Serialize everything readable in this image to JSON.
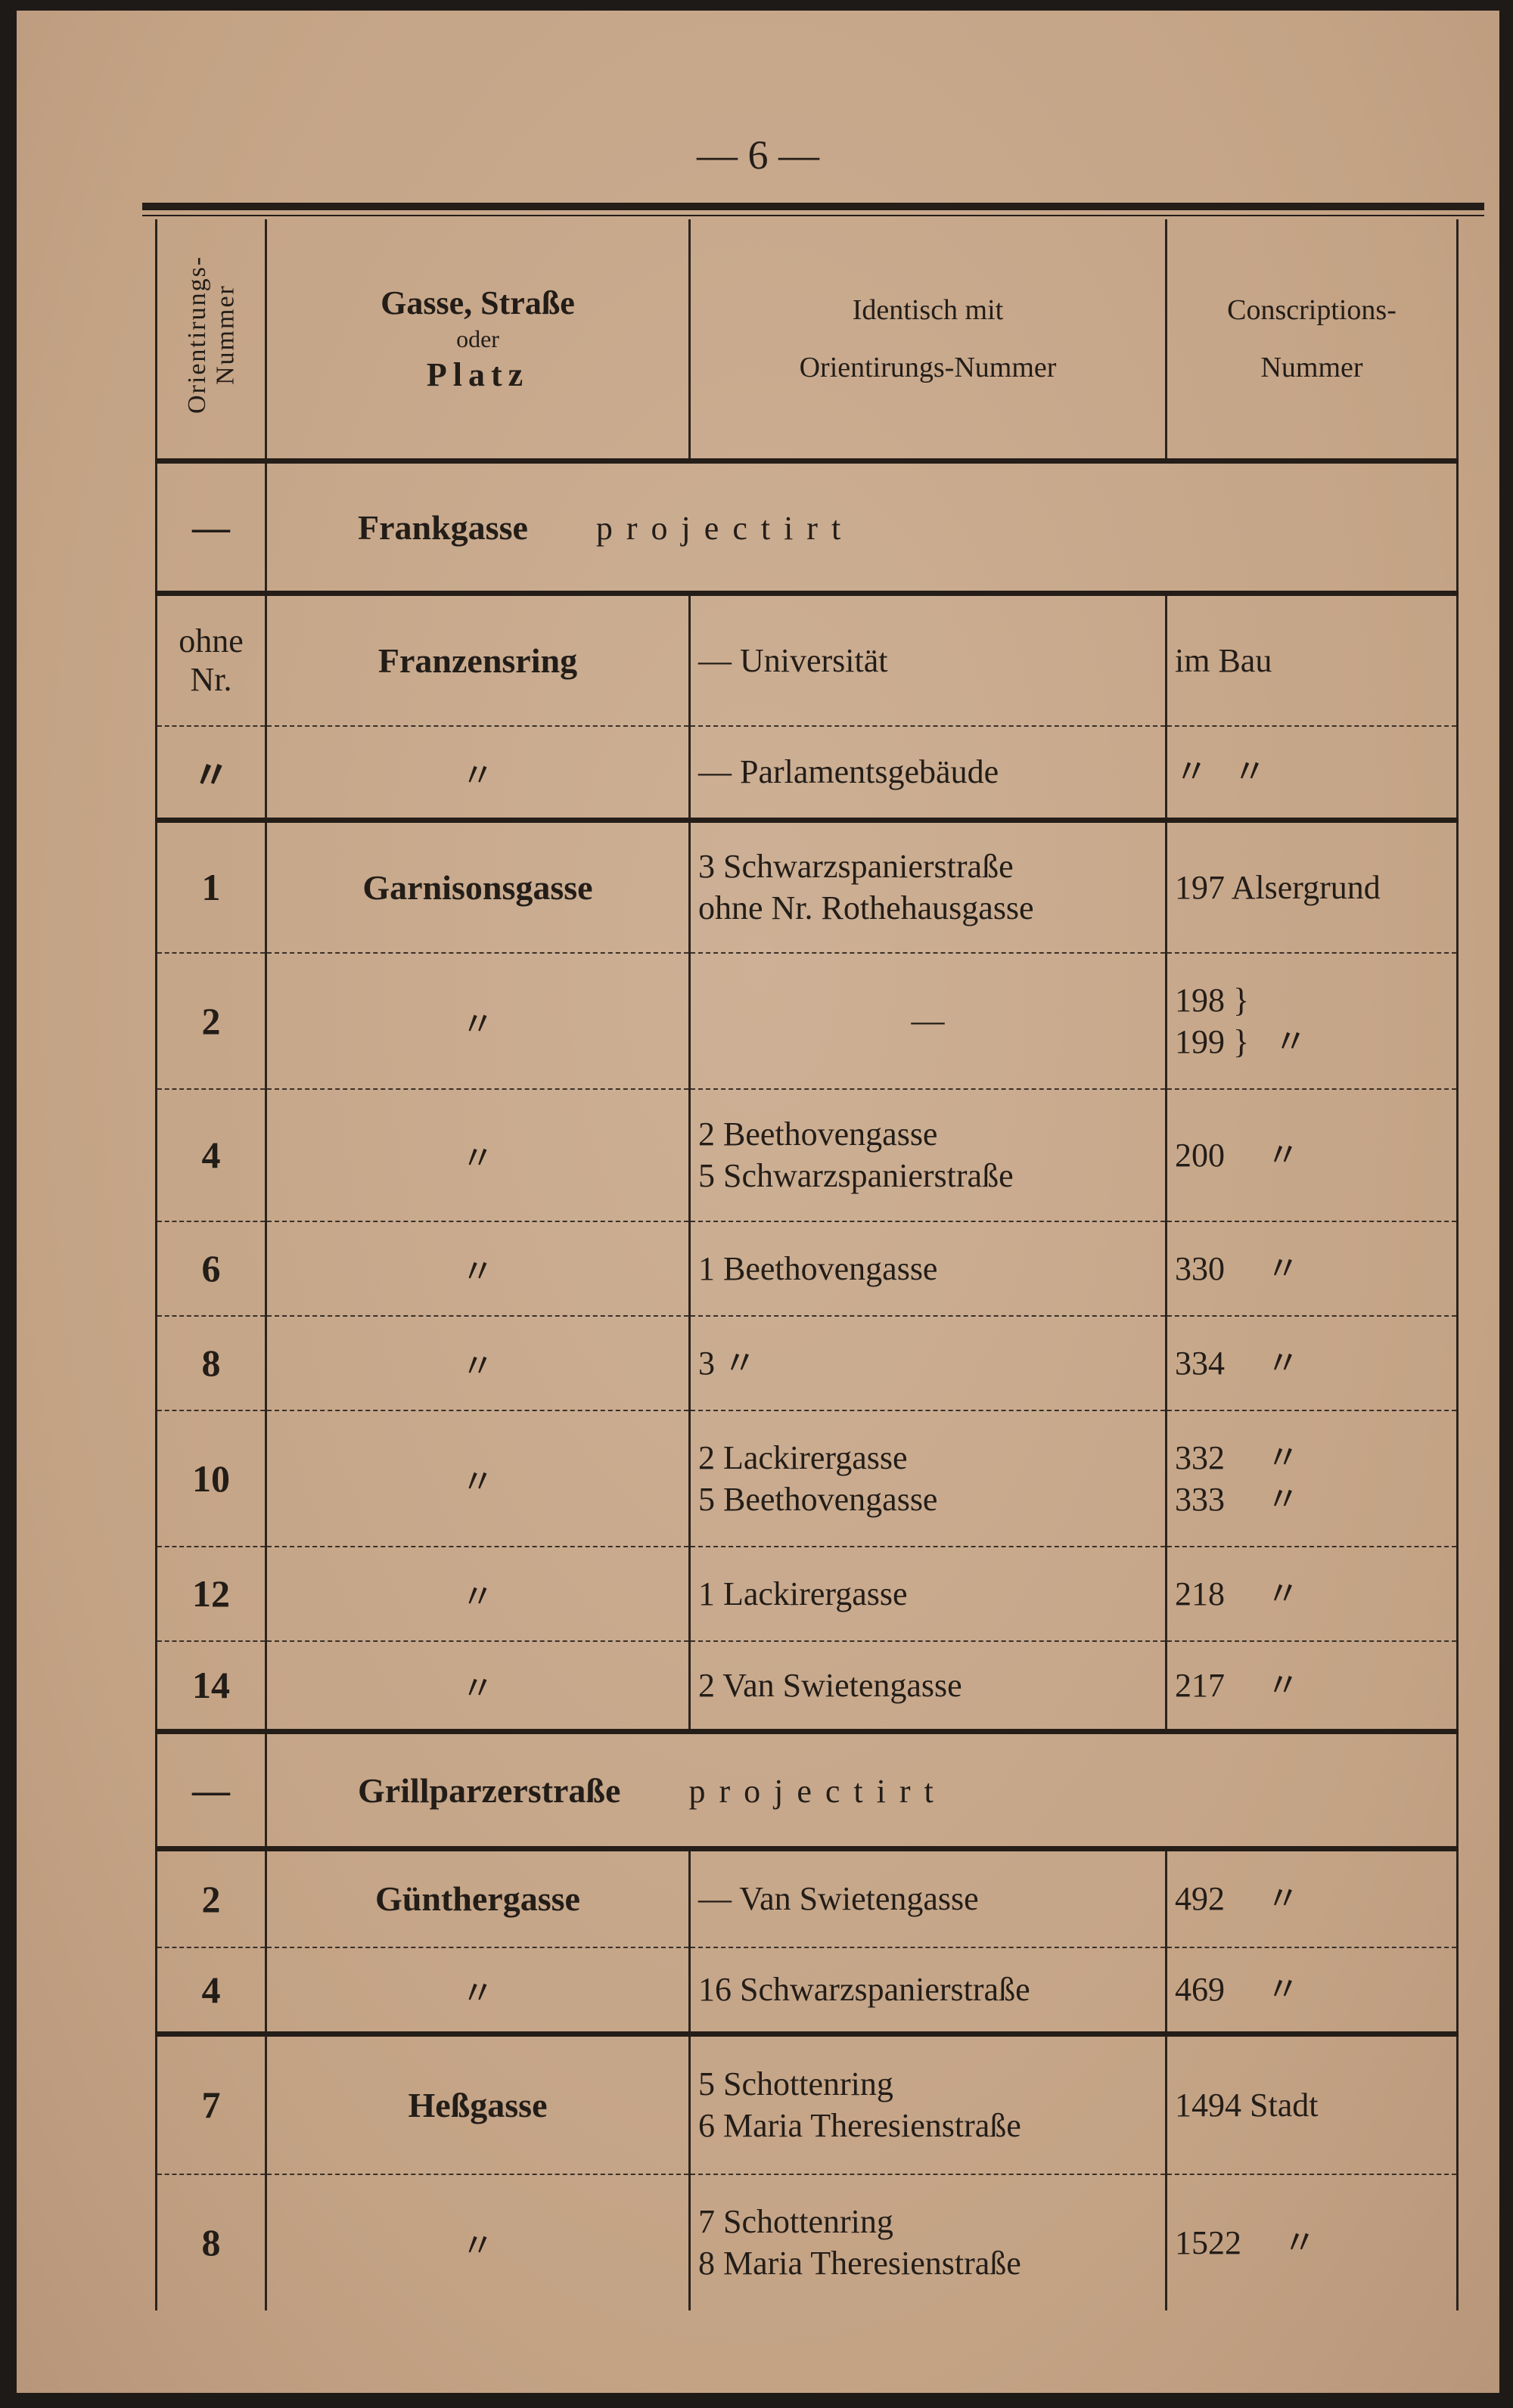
{
  "page_number": "— 6 —",
  "header": {
    "col1": "Orientirungs-Nummer",
    "col2_line1": "Gasse, Straße",
    "col2_line2": "oder",
    "col2_line3": "Platz",
    "col3_line1": "Identisch mit",
    "col3_line2": "Orientirungs-Nummer",
    "col4_line1": "Conscriptions-",
    "col4_line2": "Nummer"
  },
  "rows": [
    {
      "type": "projected",
      "nr": "—",
      "street": "Frankgasse",
      "note": "projectirt",
      "group_start": true,
      "h": 175
    },
    {
      "nr": "ohne Nr.",
      "street": "Franzensring",
      "identical": [
        "— Universität"
      ],
      "conscription": [
        "im Bau"
      ],
      "group_start": true,
      "h": 175
    },
    {
      "nr": "〃",
      "street": "〃",
      "identical": [
        "— Parlamentsgebäude"
      ],
      "conscription": [
        "〃   〃"
      ],
      "h": 125
    },
    {
      "nr": "1",
      "street": "Garnisonsgasse",
      "identical": [
        "3 Schwarzspanierstraße",
        "ohne Nr. Rothehausgasse"
      ],
      "conscription": [
        "197 Alsergrund"
      ],
      "group_start": true,
      "h": 175
    },
    {
      "nr": "2",
      "street": "〃",
      "identical": [
        "—"
      ],
      "conscription": [
        "198 }",
        "199 }   〃"
      ],
      "h": 180
    },
    {
      "nr": "4",
      "street": "〃",
      "identical": [
        "2 Beethovengasse",
        "5 Schwarzspanierstraße"
      ],
      "conscription": [
        "200     〃"
      ],
      "h": 175
    },
    {
      "nr": "6",
      "street": "〃",
      "identical": [
        "1 Beethovengasse"
      ],
      "conscription": [
        "330     〃"
      ],
      "h": 125
    },
    {
      "nr": "8",
      "street": "〃",
      "identical": [
        "3        〃"
      ],
      "conscription": [
        "334     〃"
      ],
      "h": 125
    },
    {
      "nr": "10",
      "street": "〃",
      "identical": [
        "2 Lackirergasse",
        "5 Beethovengasse"
      ],
      "conscription": [
        "332     〃",
        "333     〃"
      ],
      "h": 180
    },
    {
      "nr": "12",
      "street": "〃",
      "identical": [
        "1 Lackirergasse"
      ],
      "conscription": [
        "218     〃"
      ],
      "h": 125
    },
    {
      "nr": "14",
      "street": "〃",
      "identical": [
        "2 Van Swietengasse"
      ],
      "conscription": [
        "217     〃"
      ],
      "h": 120
    },
    {
      "type": "projected",
      "nr": "—",
      "street": "Grillparzerstraße",
      "note": "projectirt",
      "group_start": true,
      "h": 155
    },
    {
      "nr": "2",
      "street": "Günthergasse",
      "identical": [
        "— Van Swietengasse"
      ],
      "conscription": [
        "492     〃"
      ],
      "group_start": true,
      "h": 130
    },
    {
      "nr": "4",
      "street": "〃",
      "identical": [
        "16 Schwarzspanierstraße"
      ],
      "conscription": [
        "469     〃"
      ],
      "h": 115
    },
    {
      "nr": "7",
      "street": "Heßgasse",
      "identical": [
        "5 Schottenring",
        "6 Maria Theresienstraße"
      ],
      "conscription": [
        "1494 Stadt"
      ],
      "group_start": true,
      "h": 185
    },
    {
      "nr": "8",
      "street": "〃",
      "identical": [
        "7 Schottenring",
        "8 Maria Theresienstraße"
      ],
      "conscription": [
        "1522     〃"
      ],
      "h": 180
    }
  ]
}
